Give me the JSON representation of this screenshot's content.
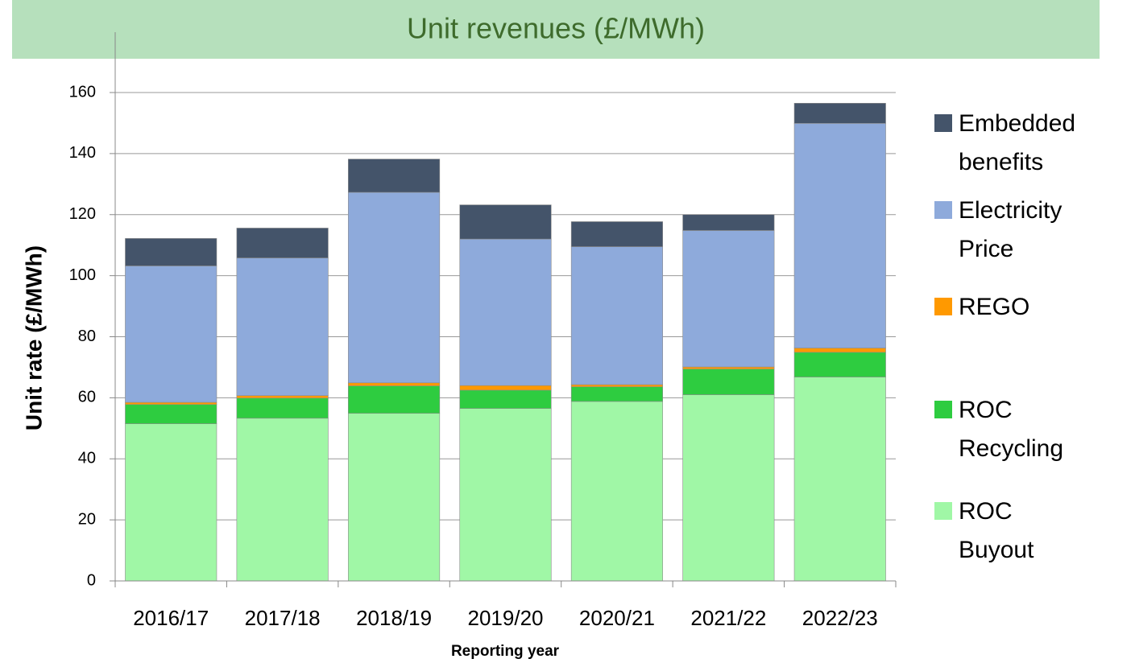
{
  "chart_data": {
    "type": "stacked_bar",
    "title": "Unit revenues (£/MWh)",
    "x_label": "Reporting year",
    "y_label": "Unit rate (£/MWh)",
    "categories": [
      "2016/17",
      "2017/18",
      "2018/19",
      "2019/20",
      "2020/21",
      "2021/22",
      "2022/23"
    ],
    "series": [
      {
        "name": "ROC Buyout",
        "color": "#a0f7a6",
        "values": [
          51.5,
          53.3,
          54.9,
          56.5,
          58.8,
          61.0,
          66.8
        ]
      },
      {
        "name": "ROC Recycling",
        "color": "#2ecc40",
        "values": [
          6.3,
          6.6,
          9.0,
          6.0,
          4.8,
          8.4,
          8.1
        ]
      },
      {
        "name": "REGO",
        "color": "#ff9900",
        "values": [
          0.7,
          0.8,
          1.0,
          1.5,
          0.7,
          0.7,
          1.4
        ]
      },
      {
        "name": "Electricity Price",
        "color": "#8eaadb",
        "values": [
          44.7,
          45.1,
          62.4,
          48.0,
          45.2,
          44.7,
          73.6
        ]
      },
      {
        "name": "Embedded benefits",
        "color": "#44546a",
        "values": [
          9.0,
          9.8,
          10.9,
          11.2,
          8.2,
          5.2,
          6.6
        ]
      }
    ],
    "ylim": [
      0,
      160
    ],
    "yticks": [
      0,
      20,
      40,
      60,
      80,
      100,
      120,
      140,
      160
    ],
    "grid": true,
    "legend": "right"
  }
}
